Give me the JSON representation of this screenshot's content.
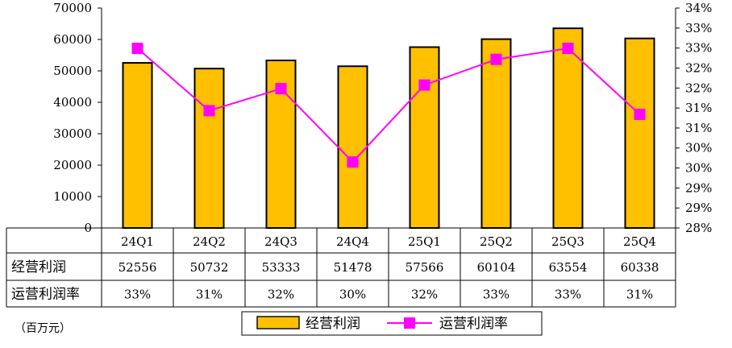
{
  "chart_data": {
    "type": "bar",
    "categories": [
      "24Q1",
      "24Q2",
      "24Q3",
      "24Q4",
      "25Q1",
      "25Q2",
      "25Q3",
      "25Q4"
    ],
    "series": [
      {
        "name": "经营利润",
        "type": "bar",
        "axis": "left",
        "values": [
          52556,
          50732,
          53333,
          51478,
          57566,
          60104,
          63554,
          60338
        ],
        "color": "#FFC000"
      },
      {
        "name": "运营利润率",
        "type": "line",
        "axis": "right",
        "values": [
          32.9,
          31.2,
          31.8,
          29.8,
          31.9,
          32.6,
          32.9,
          31.1
        ],
        "color": "#FF00FF"
      }
    ],
    "y_left": {
      "lim": [
        0,
        70000
      ],
      "ticks": [
        "0",
        "10000",
        "20000",
        "30000",
        "40000",
        "50000",
        "60000",
        "70000"
      ]
    },
    "y_right": {
      "lim": [
        28,
        34
      ],
      "ticks": [
        "28%",
        "29%",
        "29%",
        "30%",
        "30%",
        "31%",
        "31%",
        "32%",
        "32%",
        "33%",
        "33%",
        "34%"
      ]
    },
    "grid": false,
    "legend_position": "bottom"
  },
  "table": {
    "row_labels": [
      "经营利润",
      "运营利润率"
    ],
    "rows": [
      [
        "52556",
        "50732",
        "53333",
        "51478",
        "57566",
        "60104",
        "63554",
        "60338"
      ],
      [
        "33%",
        "31%",
        "32%",
        "30%",
        "32%",
        "33%",
        "33%",
        "31%"
      ]
    ]
  },
  "unit_label": "（百万元）",
  "colors": {
    "bar": "#FFC000",
    "line": "#FF00FF",
    "axis": "#000000"
  }
}
